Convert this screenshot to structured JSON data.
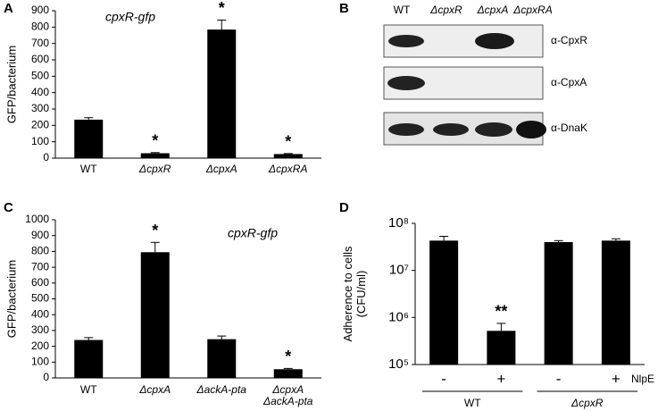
{
  "chart_data": [
    {
      "type": "bar",
      "panel": "A",
      "annotation": "cpxR-gfp",
      "ylabel": "GFP/bacterium",
      "categories": [
        "WT",
        "ΔcpxR",
        "ΔcpxA",
        "ΔcpxRA"
      ],
      "values": [
        235,
        30,
        785,
        25
      ],
      "errors": [
        12,
        4,
        58,
        3
      ],
      "significance": [
        null,
        "*",
        "*",
        "*"
      ],
      "color": "#000000",
      "ylim": [
        0,
        900
      ],
      "yticks": [
        0,
        100,
        200,
        300,
        400,
        500,
        600,
        700,
        800,
        900
      ]
    },
    {
      "type": "bar",
      "panel": "C",
      "annotation": "cpxR-gfp",
      "ylabel": "GFP/bacterium",
      "categories": [
        "WT",
        "ΔcpxA",
        "ΔackA-pta",
        "ΔcpxA ΔackA-pta"
      ],
      "values": [
        240,
        795,
        245,
        55
      ],
      "errors": [
        15,
        62,
        20,
        5
      ],
      "significance": [
        null,
        "*",
        null,
        "*"
      ],
      "color": "#000000",
      "ylim": [
        0,
        1000
      ],
      "yticks": [
        0,
        100,
        200,
        300,
        400,
        500,
        600,
        700,
        800,
        900,
        1000
      ]
    },
    {
      "type": "bar",
      "panel": "D",
      "log_scale": true,
      "ylabel": "Adherence to cells (CFU/ml)",
      "categories": [
        "-",
        "+",
        "-",
        "+"
      ],
      "groups": [
        "WT",
        "ΔcpxR"
      ],
      "xlabel": "NlpE",
      "values": [
        43000000,
        520000,
        40000000,
        43000000
      ],
      "errors": [
        10000000,
        230000,
        3000000,
        4000000
      ],
      "significance": [
        null,
        "**",
        null,
        null
      ],
      "color": "#000000",
      "ylim": [
        100000,
        100000000
      ],
      "yticks": [
        {
          "value": 100000,
          "label": "10⁵"
        },
        {
          "value": 1000000,
          "label": "10⁶"
        },
        {
          "value": 10000000,
          "label": "10⁷"
        },
        {
          "value": 100000000,
          "label": "10⁸"
        }
      ]
    }
  ],
  "blot": {
    "panel": "B",
    "lanes": [
      "WT",
      "ΔcpxR",
      "ΔcpxA",
      "ΔcpxRA"
    ],
    "rows": [
      "α-CpxR",
      "α-CpxA",
      "α-DnaK"
    ]
  }
}
